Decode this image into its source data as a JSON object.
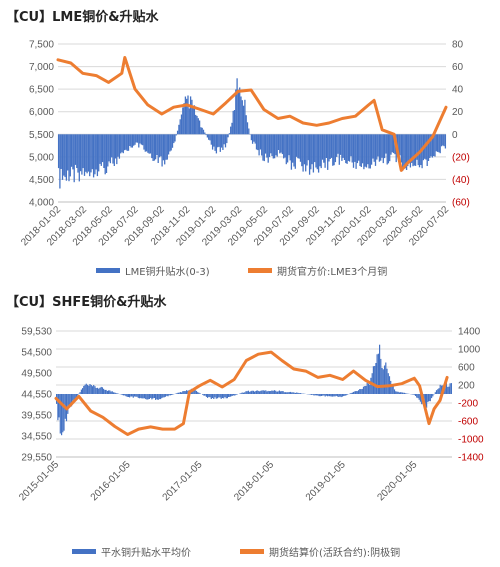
{
  "colors": {
    "blue": "#4472c4",
    "orange": "#ed7d31",
    "tick": "#595959",
    "red_tick": "#c00000",
    "grid": "#d9d9d9"
  },
  "panel1": {
    "title": "【CU】LME铜价&升贴水",
    "legend": {
      "bar_label": "LME铜升贴水(0-3)",
      "line_label": "期货官方价:LME3个月铜"
    }
  },
  "panel2": {
    "title": "【CU】SHFE铜价&升贴水",
    "legend": {
      "bar_label": "平水铜升贴水平均价",
      "line_label": "期货结算价(活跃合约):阴极铜"
    }
  },
  "chart_data": [
    {
      "type": "bar+line",
      "title": "【CU】LME铜价&升贴水",
      "x_tick_labels": [
        "2018-01-02",
        "2018-03-02",
        "2018-05-02",
        "2018-07-02",
        "2018-09-02",
        "2018-11-02",
        "2019-01-02",
        "2019-03-02",
        "2019-05-02",
        "2019-07-02",
        "2019-09-02",
        "2019-11-02",
        "2020-01-02",
        "2020-03-02",
        "2020-05-02",
        "2020-07-02"
      ],
      "left_axis": {
        "ylim": [
          4000,
          7500
        ],
        "ticks": [
          "4,000",
          "4,500",
          "5,000",
          "5,500",
          "6,000",
          "6,500",
          "7,000",
          "7,500"
        ]
      },
      "right_axis": {
        "ylim": [
          -60,
          80
        ],
        "ticks": [
          "(60)",
          "(40)",
          "(20)",
          "0",
          "20",
          "40",
          "60",
          "80"
        ]
      },
      "series": [
        {
          "name": "期货官方价:LME3个月铜",
          "kind": "line",
          "axis": "left",
          "x": [
            "2018-01-02",
            "2018-02-01",
            "2018-03-01",
            "2018-04-02",
            "2018-05-01",
            "2018-06-01",
            "2018-06-08",
            "2018-07-02",
            "2018-08-01",
            "2018-09-03",
            "2018-10-01",
            "2018-11-01",
            "2018-12-03",
            "2019-01-02",
            "2019-02-01",
            "2019-03-01",
            "2019-04-01",
            "2019-05-01",
            "2019-06-03",
            "2019-07-01",
            "2019-08-01",
            "2019-09-02",
            "2019-10-01",
            "2019-11-01",
            "2019-12-02",
            "2020-01-02",
            "2020-01-15",
            "2020-02-03",
            "2020-03-02",
            "2020-03-19",
            "2020-04-01",
            "2020-05-01",
            "2020-06-01",
            "2020-07-02"
          ],
          "values": [
            7150,
            7080,
            6850,
            6800,
            6650,
            6850,
            7200,
            6500,
            6150,
            5950,
            6100,
            6150,
            6050,
            5950,
            6200,
            6450,
            6480,
            6050,
            5850,
            5900,
            5750,
            5700,
            5750,
            5850,
            5900,
            6150,
            6250,
            5600,
            5500,
            4700,
            4850,
            5100,
            5450,
            6100
          ]
        },
        {
          "name": "LME铜升贴水(0-3)",
          "kind": "bar",
          "axis": "right",
          "x": [
            "2018-01-02",
            "2018-02-01",
            "2018-03-01",
            "2018-04-02",
            "2018-05-01",
            "2018-06-01",
            "2018-07-02",
            "2018-08-01",
            "2018-09-03",
            "2018-10-01",
            "2018-10-15",
            "2018-11-01",
            "2018-11-15",
            "2018-12-03",
            "2019-01-02",
            "2019-01-15",
            "2019-02-01",
            "2019-02-15",
            "2019-03-01",
            "2019-03-15",
            "2019-04-01",
            "2019-05-01",
            "2019-06-03",
            "2019-07-01",
            "2019-08-01",
            "2019-09-02",
            "2019-10-01",
            "2019-11-01",
            "2019-12-02",
            "2020-01-02",
            "2020-02-03",
            "2020-03-02",
            "2020-04-01",
            "2020-05-01",
            "2020-06-01",
            "2020-07-02"
          ],
          "values": [
            -40,
            -38,
            -33,
            -30,
            -28,
            -20,
            -8,
            -15,
            -26,
            -10,
            10,
            32,
            25,
            8,
            -12,
            -15,
            -10,
            10,
            48,
            30,
            -5,
            -22,
            -18,
            -25,
            -28,
            -30,
            -25,
            -22,
            -26,
            -28,
            -24,
            -18,
            -30,
            -26,
            -22,
            -10
          ]
        }
      ],
      "grid": true
    },
    {
      "type": "bar+line",
      "title": "【CU】SHFE铜价&升贴水",
      "x_tick_labels": [
        "2015-01-05",
        "2016-01-05",
        "2017-01-05",
        "2018-01-05",
        "2019-01-05",
        "2020-01-05"
      ],
      "left_axis": {
        "ylim": [
          29550,
          59530
        ],
        "ticks": [
          "29,550",
          "34,550",
          "39,550",
          "44,550",
          "49,500",
          "54,500",
          "59,530"
        ]
      },
      "right_axis": {
        "ylim": [
          -1400,
          1400
        ],
        "ticks": [
          "-1400",
          "-1000",
          "-600",
          "-200",
          "200",
          "600",
          "1000",
          "1400"
        ]
      },
      "series": [
        {
          "name": "期货结算价(活跃合约):阴极铜",
          "kind": "line",
          "axis": "left",
          "x": [
            "2015-01-05",
            "2015-03-01",
            "2015-05-01",
            "2015-07-01",
            "2015-09-01",
            "2015-11-01",
            "2016-01-05",
            "2016-03-01",
            "2016-05-01",
            "2016-07-01",
            "2016-09-01",
            "2016-10-15",
            "2016-11-15",
            "2017-01-05",
            "2017-03-01",
            "2017-05-01",
            "2017-07-01",
            "2017-09-01",
            "2017-11-01",
            "2018-01-05",
            "2018-03-01",
            "2018-05-01",
            "2018-07-01",
            "2018-09-01",
            "2018-11-01",
            "2019-01-05",
            "2019-03-01",
            "2019-05-01",
            "2019-07-01",
            "2019-09-01",
            "2019-11-01",
            "2020-01-05",
            "2020-02-01",
            "2020-03-20",
            "2020-04-15",
            "2020-05-15",
            "2020-06-20"
          ],
          "values": [
            43500,
            41000,
            44000,
            40500,
            39000,
            36800,
            34900,
            36200,
            36700,
            36200,
            36200,
            37500,
            45000,
            46500,
            47800,
            46200,
            48000,
            52500,
            54000,
            54500,
            52500,
            50500,
            50000,
            48500,
            49000,
            48000,
            50000,
            47800,
            46300,
            46500,
            47000,
            48300,
            46500,
            37500,
            41000,
            43000,
            48500
          ]
        },
        {
          "name": "平水铜升贴水平均价",
          "kind": "bar",
          "axis": "right",
          "x": [
            "2015-01-05",
            "2015-02-01",
            "2015-03-15",
            "2015-06-01",
            "2015-09-01",
            "2016-01-05",
            "2016-06-01",
            "2016-10-01",
            "2016-12-01",
            "2017-03-01",
            "2017-06-01",
            "2017-09-01",
            "2018-01-05",
            "2018-06-01",
            "2018-09-01",
            "2019-01-05",
            "2019-04-01",
            "2019-06-01",
            "2019-07-01",
            "2019-10-01",
            "2020-01-05",
            "2020-03-01",
            "2020-04-01",
            "2020-05-15"
          ],
          "values": [
            -200,
            -1000,
            -300,
            200,
            120,
            -60,
            -120,
            40,
            100,
            -100,
            -80,
            60,
            80,
            20,
            -40,
            -60,
            100,
            300,
            1000,
            60,
            -20,
            -300,
            -100,
            200
          ]
        }
      ],
      "grid": true
    }
  ]
}
